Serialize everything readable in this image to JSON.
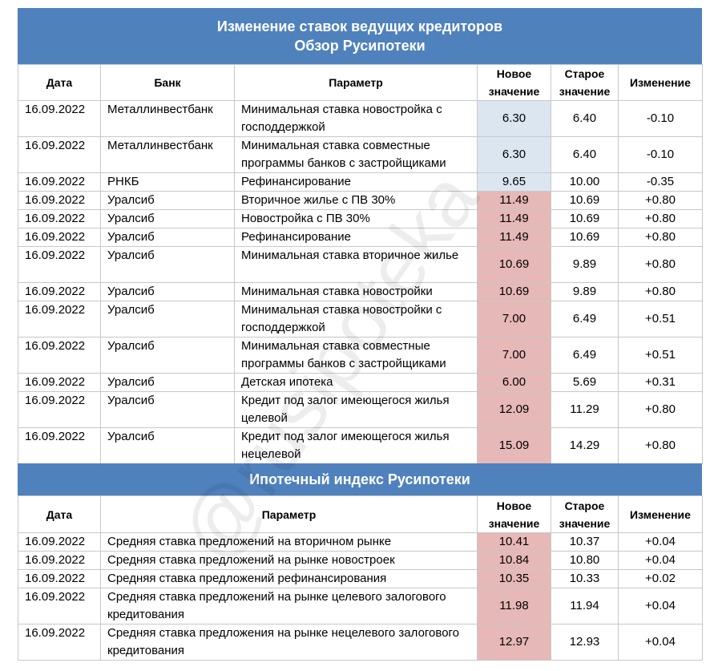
{
  "header": {
    "title": "Изменение ставок ведущих кредиторов",
    "subtitle": "Обзор Русипотеки"
  },
  "table": {
    "columns": [
      "Дата",
      "Банк",
      "Параметр",
      "Новое значение",
      "Старое значение",
      "Изменение"
    ],
    "rows": [
      [
        "16.09.2022",
        "Металлинвестбанк",
        "Минимальная ставка новостройка с господдержкой",
        "6.30",
        "6.40",
        "-0.10"
      ],
      [
        "16.09.2022",
        "Металлинвестбанк",
        "Минимальная ставка совместные программы банков с застройщиками",
        "6.30",
        "6.40",
        "-0.10"
      ],
      [
        "16.09.2022",
        "РНКБ",
        "Рефинансирование",
        "9.65",
        "10.00",
        "-0.35"
      ],
      [
        "16.09.2022",
        "Уралсиб",
        "Вторичное жилье с ПВ 30%",
        "11.49",
        "10.69",
        "+0.80"
      ],
      [
        "16.09.2022",
        "Уралсиб",
        "Новостройка с ПВ 30%",
        "11.49",
        "10.69",
        "+0.80"
      ],
      [
        "16.09.2022",
        "Уралсиб",
        "Рефинансирование",
        "11.49",
        "10.69",
        "+0.80"
      ],
      [
        "16.09.2022",
        "Уралсиб",
        "Минимальная ставка вторичное жилье",
        "10.69",
        "9.89",
        "+0.80"
      ],
      [
        "16.09.2022",
        "Уралсиб",
        "Минимальная ставка новостройки",
        "10.69",
        "9.89",
        "+0.80"
      ],
      [
        "16.09.2022",
        "Уралсиб",
        "Минимальная ставка новостройки с господдержкой",
        "7.00",
        "6.49",
        "+0.51"
      ],
      [
        "16.09.2022",
        "Уралсиб",
        "Минимальная ставка совместные программы банков с застройщиками",
        "7.00",
        "6.49",
        "+0.51"
      ],
      [
        "16.09.2022",
        "Уралсиб",
        "Детская ипотека",
        "6.00",
        "5.69",
        "+0.31"
      ],
      [
        "16.09.2022",
        "Уралсиб",
        "Кредит под залог имеющегося жилья целевой",
        "12.09",
        "11.29",
        "+0.80"
      ],
      [
        "16.09.2022",
        "Уралсиб",
        "Кредит под залог имеющегося жилья нецелевой",
        "15.09",
        "14.29",
        "+0.80"
      ]
    ],
    "highlights": [
      "#dce6f1",
      "#dce6f1",
      "#dce6f1",
      "#e6b8b7",
      "#e6b8b7",
      "#e6b8b7",
      "#e6b8b7",
      "#e6b8b7",
      "#e6b8b7",
      "#e6b8b7",
      "#e6b8b7",
      "#e6b8b7",
      "#e6b8b7"
    ]
  },
  "index": {
    "title": "Ипотечный индекс Русипотеки",
    "columns": [
      "Дата",
      "Параметр",
      "Новое значение",
      "Старое значение",
      "Изменение"
    ],
    "rows": [
      [
        "16.09.2022",
        "Средняя ставка предложений на вторичном рынке",
        "10.41",
        "10.37",
        "+0.04"
      ],
      [
        "16.09.2022",
        "Средняя ставка предложений на рынке новостроек",
        "10.84",
        "10.80",
        "+0.04"
      ],
      [
        "16.09.2022",
        "Средняя ставка предложений рефинансирования",
        "10.35",
        "10.33",
        "+0.02"
      ],
      [
        "16.09.2022",
        "Средняя ставка предложений на рынке целевого залогового кредитования",
        "11.98",
        "11.94",
        "+0.04"
      ],
      [
        "16.09.2022",
        "Средняя ставка предложения на рынке нецелевого залогового кредитования",
        "12.97",
        "12.93",
        "+0.04"
      ]
    ],
    "highlights": [
      "#e6b8b7",
      "#e6b8b7",
      "#e6b8b7",
      "#e6b8b7",
      "#e6b8b7"
    ]
  },
  "watermark": "@rusipoteka"
}
